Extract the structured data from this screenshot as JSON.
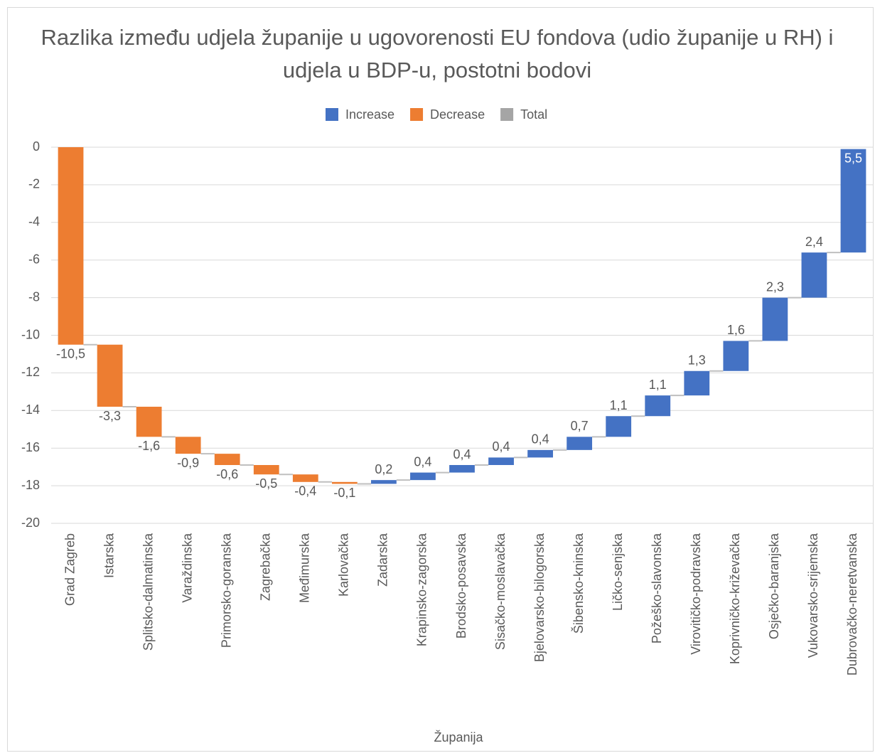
{
  "chart_data": {
    "type": "waterfall",
    "title": "Razlika između udjela županije u ugovorenosti EU fondova (udio županije u RH) i udjela u BDP-u, postotni bodovi",
    "x_label": "Županija",
    "legend": [
      {
        "name": "Increase",
        "color": "#4472c4"
      },
      {
        "name": "Decrease",
        "color": "#ed7d31"
      },
      {
        "name": "Total",
        "color": "#a5a5a5"
      }
    ],
    "categories": [
      "Grad Zagreb",
      "Istarska",
      "Splitsko-dalmatinska",
      "Varaždinska",
      "Primorsko-goranska",
      "Zagrebačka",
      "Međimurska",
      "Karlovačka",
      "Zadarska",
      "Krapinsko-zagorska",
      "Brodsko-posavska",
      "Sisačko-moslavačka",
      "Bjelovarsko-bilogorska",
      "Šibensko-kninska",
      "Ličko-senjska",
      "Požeško-slavonska",
      "Virovitičko-podravska",
      "Koprivničko-križevačka",
      "Osječko-baranjska",
      "Vukovarsko-srijemska",
      "Dubrovačko-neretvanska"
    ],
    "values": [
      -10.5,
      -3.3,
      -1.6,
      -0.9,
      -0.6,
      -0.5,
      -0.4,
      -0.1,
      0.2,
      0.4,
      0.4,
      0.4,
      0.4,
      0.7,
      1.1,
      1.1,
      1.3,
      1.6,
      2.3,
      2.4,
      5.5
    ],
    "value_labels": [
      "-10,5",
      "-3,3",
      "-1,6",
      "-0,9",
      "-0,6",
      "-0,5",
      "-0,4",
      "-0,1",
      "0,2",
      "0,4",
      "0,4",
      "0,4",
      "0,4",
      "0,7",
      "1,1",
      "1,1",
      "1,3",
      "1,6",
      "2,3",
      "2,4",
      "5,5"
    ],
    "ylim": [
      -20,
      0
    ],
    "yticks": [
      0,
      -2,
      -4,
      -6,
      -8,
      -10,
      -12,
      -14,
      -16,
      -18,
      -20
    ],
    "grid": true
  }
}
